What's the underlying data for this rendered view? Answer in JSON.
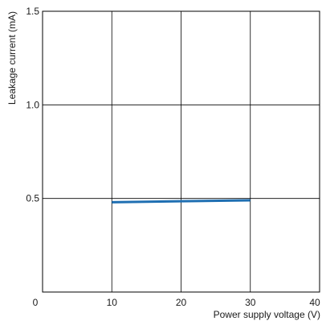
{
  "chart_data": {
    "type": "line",
    "title": "",
    "xlabel": "Power supply voltage (V)",
    "ylabel": "Leakage current (mA)",
    "xlim": [
      0,
      40
    ],
    "ylim": [
      0,
      1.5
    ],
    "x_ticks": [
      "0",
      "10",
      "20",
      "30",
      "40"
    ],
    "y_ticks": [
      "0.5",
      "1.0",
      "1.5"
    ],
    "grid": true,
    "series": [
      {
        "x": [
          10,
          20,
          30
        ],
        "y": [
          0.48,
          0.485,
          0.49
        ],
        "color": "#1f6fb2"
      }
    ]
  }
}
